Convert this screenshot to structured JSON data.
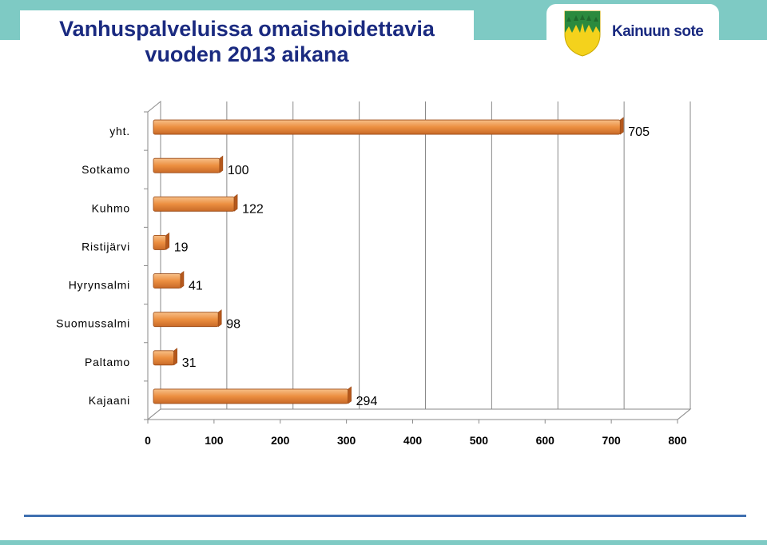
{
  "header": {
    "title_line1": "Vanhuspalveluissa omaishoidettavia",
    "title_line2": "vuoden 2013 aikana",
    "logo_text": "Kainuun sote",
    "logo_icon": "coat-of-arms-icon"
  },
  "colors": {
    "band": "#7ecac4",
    "title": "#1a2a80",
    "bar_light": "#f7c089",
    "bar_mid": "#ec8f40",
    "bar_dark": "#b5581c",
    "divider": "#3f6fb0"
  },
  "chart_data": {
    "type": "bar",
    "orientation": "horizontal",
    "categories": [
      "yht.",
      "Sotkamo",
      "Kuhmo",
      "Ristijärvi",
      "Hyrynsalmi",
      "Suomussalmi",
      "Paltamo",
      "Kajaani"
    ],
    "values": [
      705,
      100,
      122,
      19,
      41,
      98,
      31,
      294
    ],
    "xlim": [
      0,
      800
    ],
    "xticks": [
      0,
      100,
      200,
      300,
      400,
      500,
      600,
      700,
      800
    ],
    "grid": "vertical",
    "title": "Vanhuspalveluissa omaishoidettavia vuoden 2013 aikana",
    "xlabel": "",
    "ylabel": ""
  }
}
